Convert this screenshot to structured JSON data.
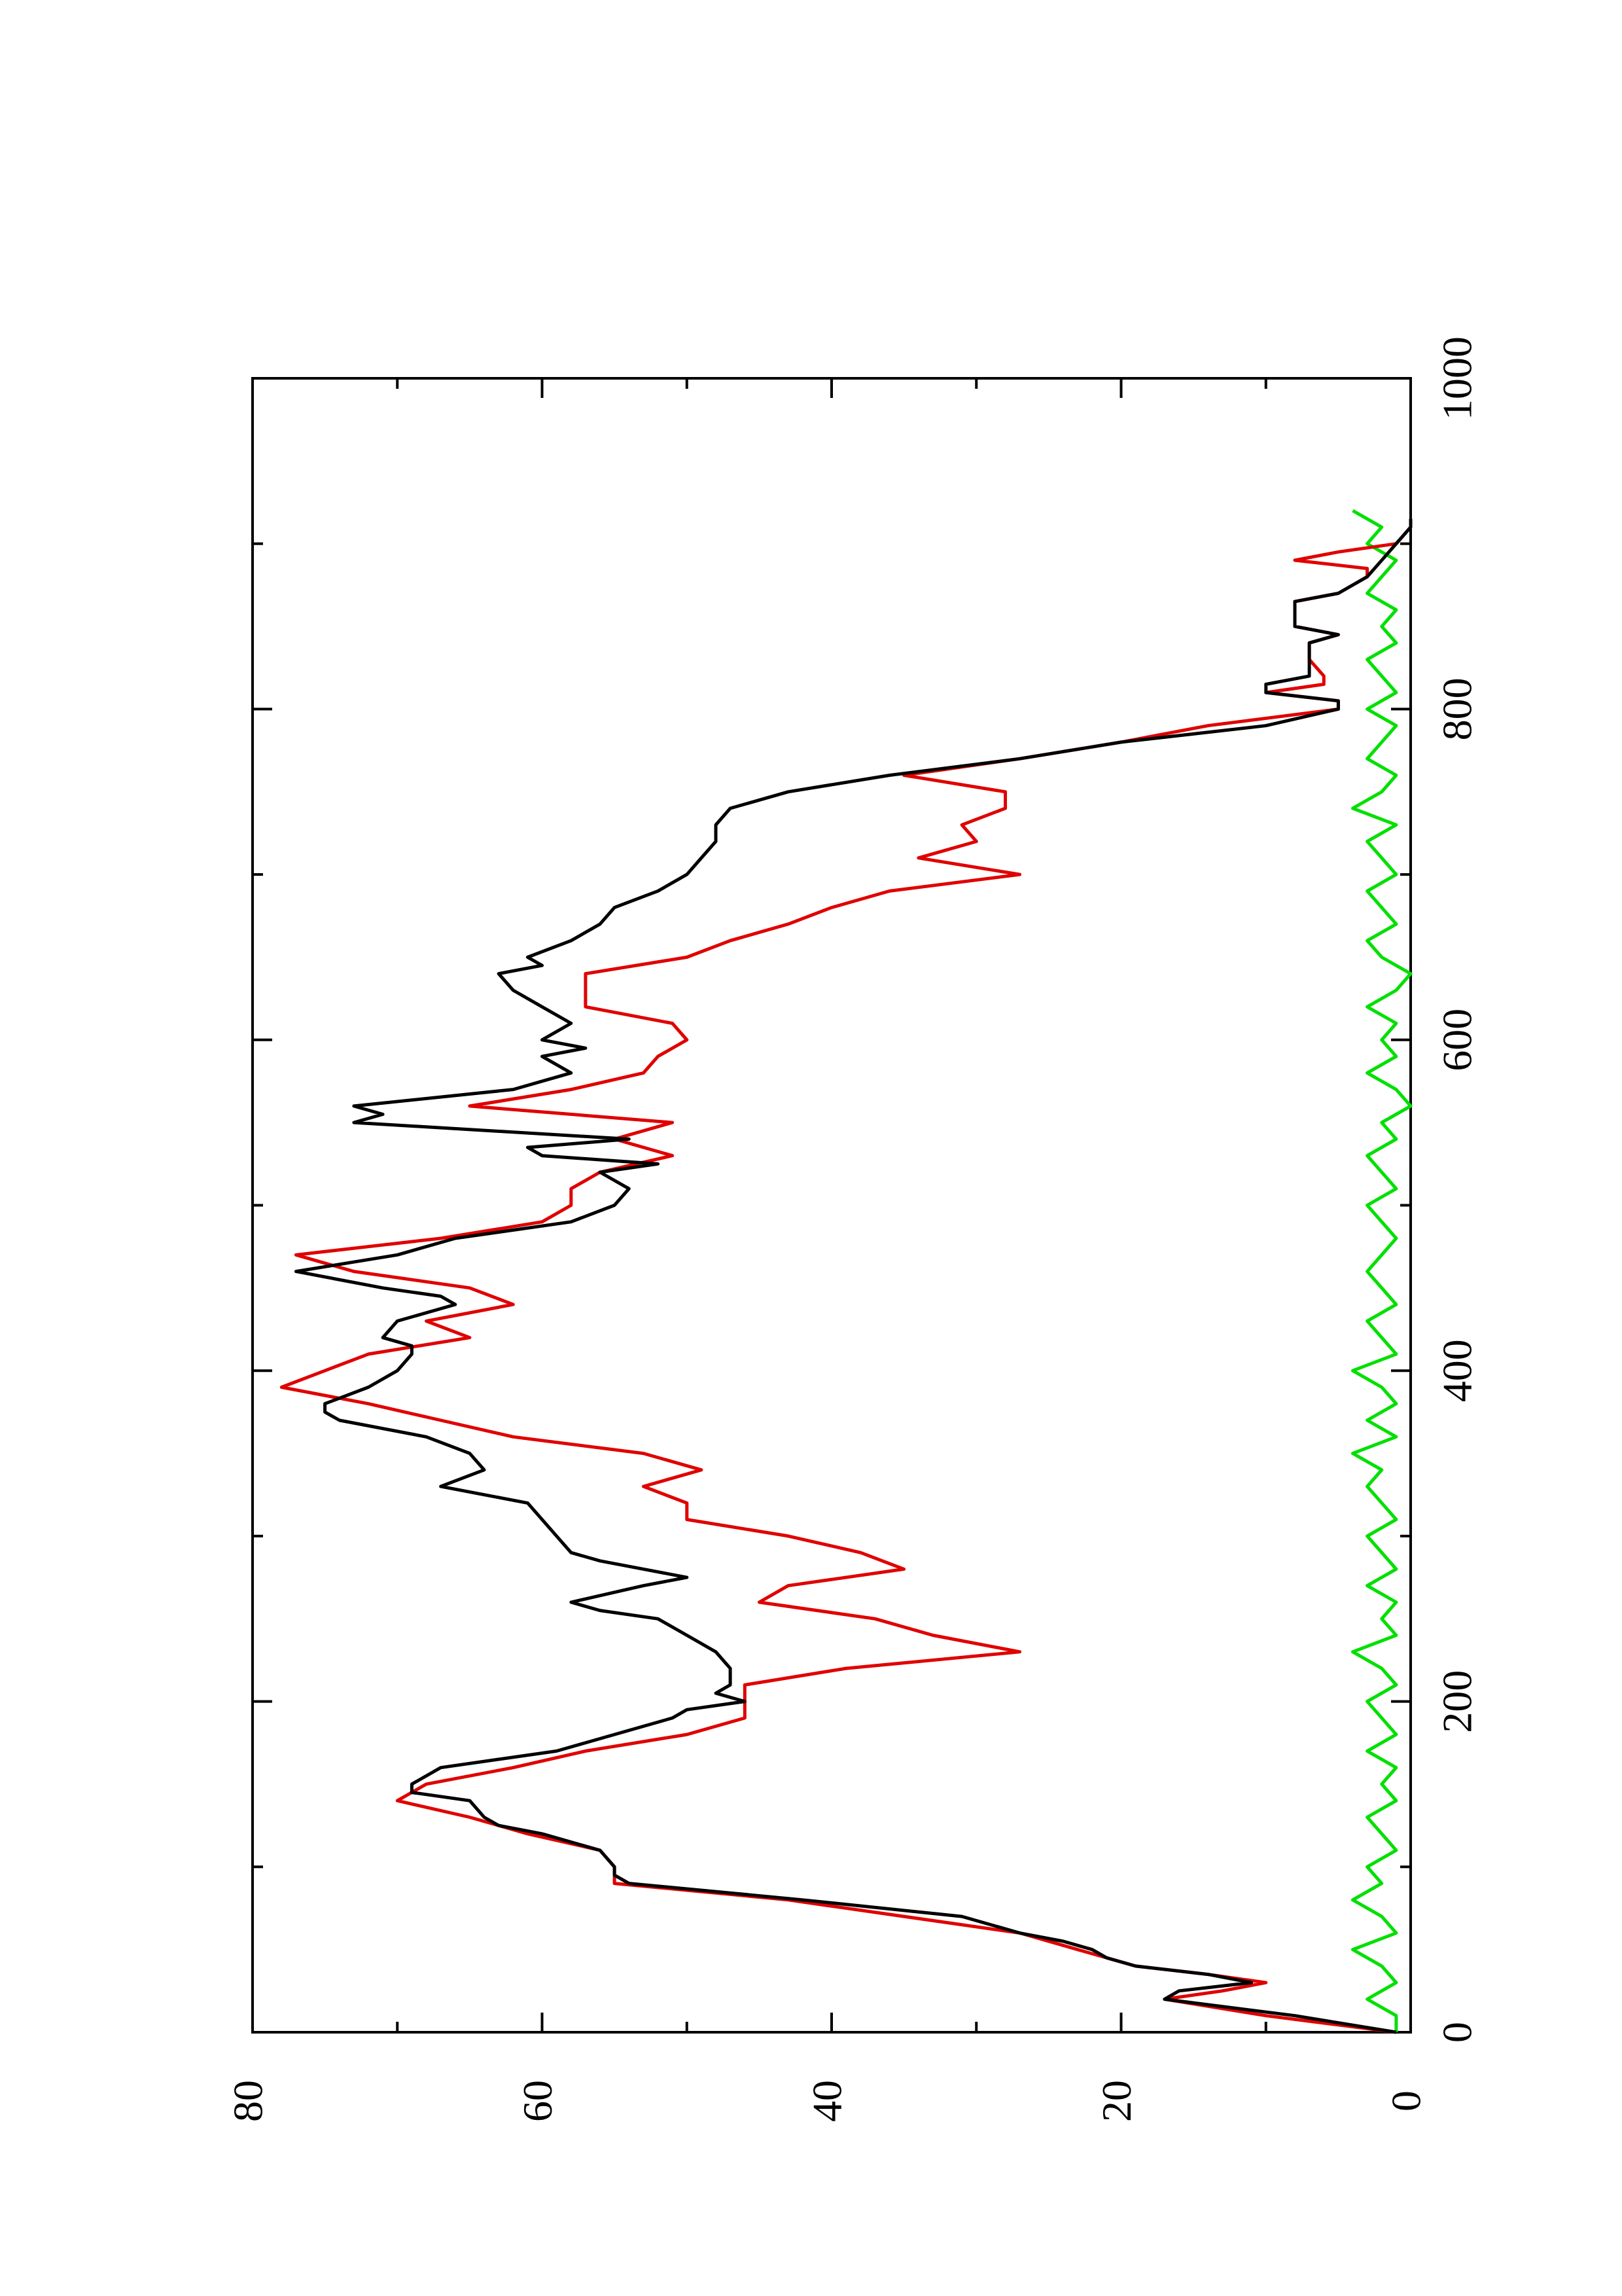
{
  "chart_data": {
    "type": "line",
    "orientation": "rotated-90-ccw",
    "title": "",
    "xlabel": "",
    "ylabel": "",
    "xlim": [
      0,
      1000
    ],
    "ylim": [
      0,
      80
    ],
    "x_ticks": [
      0,
      200,
      400,
      600,
      800,
      1000
    ],
    "x_minor_ticks": [
      100,
      300,
      500,
      700,
      900
    ],
    "y_ticks": [
      0,
      20,
      40,
      60,
      80
    ],
    "y_minor_ticks": [
      10,
      30,
      50,
      70
    ],
    "grid": false,
    "legend": "none",
    "series": [
      {
        "color": "#000000",
        "x": [
          0,
          10,
          20,
          25,
          30,
          35,
          40,
          45,
          50,
          55,
          60,
          70,
          80,
          90,
          95,
          100,
          110,
          120,
          125,
          130,
          140,
          145,
          150,
          160,
          165,
          170,
          180,
          190,
          195,
          200,
          205,
          210,
          220,
          230,
          240,
          250,
          255,
          260,
          270,
          275,
          280,
          285,
          290,
          300,
          310,
          320,
          330,
          340,
          350,
          360,
          370,
          375,
          380,
          390,
          400,
          410,
          415,
          420,
          430,
          440,
          445,
          450,
          460,
          470,
          480,
          490,
          500,
          510,
          520,
          525,
          530,
          535,
          540,
          550,
          555,
          560,
          570,
          580,
          590,
          595,
          600,
          610,
          620,
          630,
          640,
          645,
          650,
          660,
          670,
          680,
          690,
          700,
          710,
          720,
          730,
          740,
          750,
          760,
          770,
          780,
          790,
          800,
          805,
          810,
          815,
          820,
          830,
          840,
          845,
          850,
          860,
          865,
          870,
          880,
          890,
          900,
          910,
          915
        ],
        "y": [
          1,
          8,
          17,
          16,
          11,
          14,
          19,
          21,
          22,
          24,
          27,
          31,
          42,
          54,
          55,
          55,
          56,
          60,
          63,
          64,
          65,
          69,
          69,
          67,
          63,
          59,
          55,
          51,
          50,
          46,
          48,
          47,
          47,
          48,
          50,
          52,
          56,
          58,
          53,
          50,
          53,
          56,
          58,
          59,
          60,
          61,
          67,
          64,
          65,
          68,
          74,
          75,
          75,
          72,
          70,
          69,
          69,
          71,
          70,
          66,
          67,
          71,
          77,
          70,
          66,
          58,
          55,
          54,
          56,
          52,
          60,
          61,
          54,
          73,
          71,
          73,
          62,
          58,
          60,
          57,
          60,
          58,
          60,
          62,
          63,
          60,
          61,
          58,
          56,
          55,
          52,
          50,
          49,
          48,
          48,
          47,
          43,
          36,
          27,
          20,
          10,
          5,
          5,
          10,
          10,
          7,
          7,
          7,
          5,
          8,
          8,
          8,
          5,
          3,
          2,
          1,
          0,
          0
        ]
      },
      {
        "color": "#e00000",
        "x": [
          0,
          10,
          20,
          25,
          30,
          35,
          40,
          50,
          60,
          70,
          80,
          90,
          100,
          110,
          120,
          130,
          140,
          150,
          160,
          170,
          180,
          190,
          200,
          210,
          220,
          230,
          240,
          250,
          260,
          270,
          280,
          290,
          300,
          310,
          320,
          330,
          340,
          350,
          360,
          370,
          380,
          390,
          400,
          410,
          420,
          430,
          440,
          450,
          460,
          470,
          480,
          490,
          500,
          510,
          520,
          530,
          540,
          550,
          560,
          570,
          580,
          590,
          600,
          610,
          620,
          630,
          640,
          650,
          660,
          670,
          680,
          690,
          700,
          710,
          720,
          730,
          740,
          750,
          760,
          770,
          780,
          790,
          800,
          805,
          810,
          815,
          820,
          830,
          840,
          845,
          850,
          860,
          865,
          870,
          880,
          885,
          890,
          895,
          900,
          910,
          915
        ],
        "y": [
          1,
          10,
          17,
          13,
          10,
          14,
          19,
          23,
          27,
          35,
          43,
          55,
          55,
          56,
          61,
          65,
          70,
          68,
          62,
          57,
          50,
          46,
          46,
          46,
          39,
          27,
          33,
          37,
          45,
          43,
          35,
          38,
          43,
          50,
          50,
          53,
          49,
          53,
          62,
          67,
          72,
          78,
          75,
          72,
          65,
          68,
          62,
          65,
          73,
          77,
          67,
          60,
          58,
          58,
          56,
          51,
          55,
          51,
          65,
          58,
          53,
          52,
          50,
          51,
          57,
          57,
          57,
          50,
          47,
          43,
          40,
          36,
          27,
          34,
          30,
          31,
          28,
          28,
          35,
          27,
          20,
          14,
          5,
          5,
          10,
          6,
          6,
          7,
          7,
          5,
          8,
          8,
          8,
          5,
          3,
          3,
          8,
          5,
          1,
          0,
          0
        ]
      },
      {
        "color": "#00e000",
        "x": [
          0,
          10,
          20,
          30,
          40,
          50,
          60,
          70,
          80,
          90,
          100,
          110,
          120,
          130,
          140,
          150,
          160,
          170,
          180,
          190,
          200,
          210,
          220,
          230,
          240,
          250,
          260,
          270,
          280,
          290,
          300,
          310,
          320,
          330,
          340,
          350,
          360,
          370,
          380,
          390,
          400,
          410,
          420,
          430,
          440,
          450,
          460,
          470,
          480,
          490,
          500,
          510,
          520,
          530,
          540,
          550,
          560,
          570,
          580,
          590,
          600,
          610,
          620,
          630,
          640,
          650,
          660,
          670,
          680,
          690,
          700,
          710,
          720,
          730,
          740,
          750,
          760,
          770,
          780,
          790,
          800,
          810,
          820,
          830,
          840,
          850,
          860,
          870,
          880,
          890,
          900,
          910,
          920
        ],
        "y": [
          1,
          1,
          3,
          1,
          2,
          4,
          1,
          2,
          4,
          2,
          3,
          1,
          2,
          3,
          1,
          2,
          1,
          3,
          1,
          2,
          3,
          1,
          2,
          4,
          1,
          2,
          1,
          3,
          1,
          2,
          3,
          1,
          2,
          3,
          2,
          4,
          1,
          3,
          1,
          2,
          4,
          1,
          2,
          3,
          1,
          2,
          3,
          2,
          1,
          2,
          3,
          1,
          2,
          3,
          1,
          2,
          0,
          1,
          3,
          1,
          2,
          1,
          3,
          1,
          0,
          2,
          3,
          1,
          2,
          3,
          1,
          2,
          3,
          1,
          4,
          2,
          1,
          3,
          2,
          1,
          3,
          1,
          2,
          3,
          1,
          2,
          1,
          3,
          2,
          1,
          3,
          2,
          4
        ]
      }
    ]
  }
}
